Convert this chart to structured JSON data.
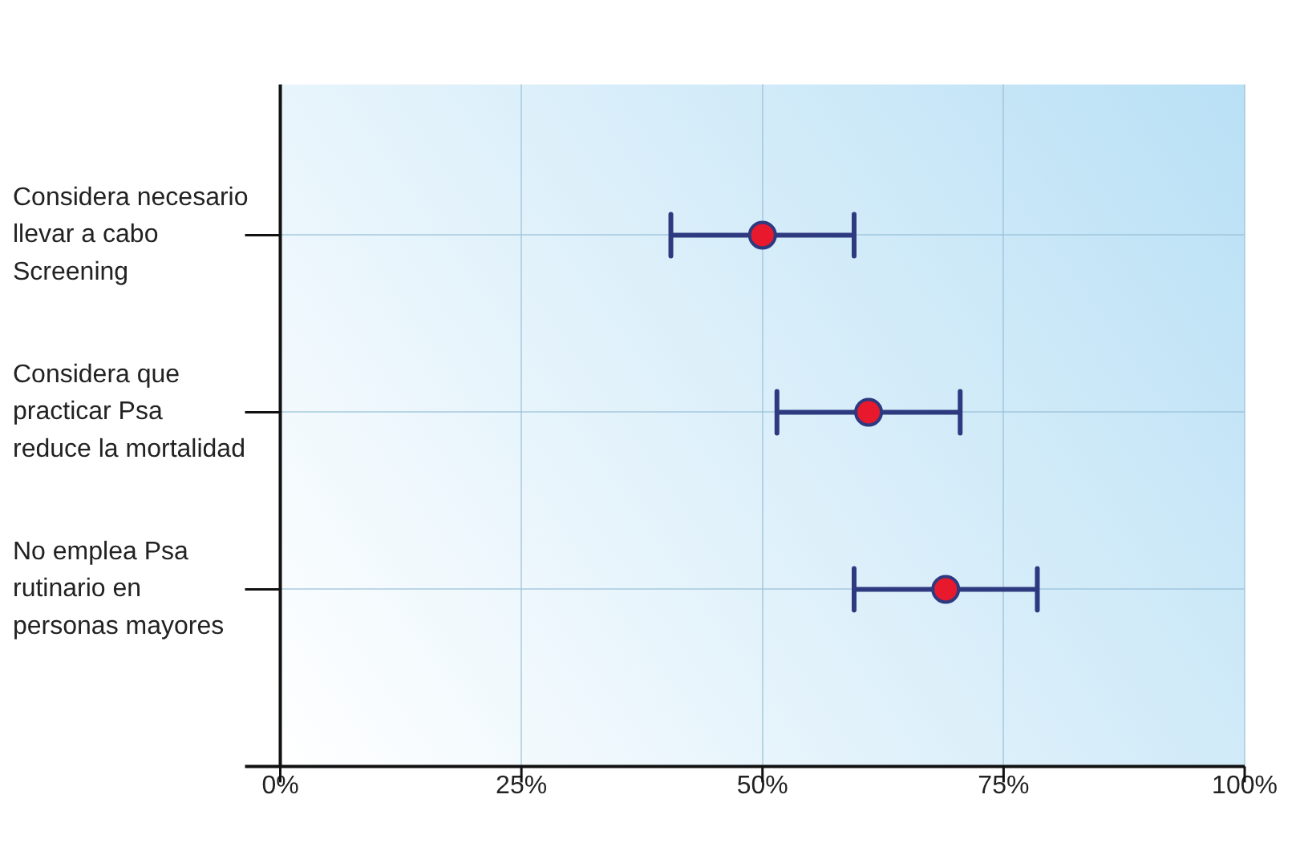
{
  "chart_data": {
    "type": "scatter",
    "orientation": "horizontal",
    "categories": [
      "Considera necesario\nllevar a cabo\nScreening",
      "Considera que\npracticar Psa\nreduce la mortalidad",
      "No emplea Psa\nrutinario en\npersonas mayores"
    ],
    "values": [
      50,
      61,
      69
    ],
    "errors": [
      9.5,
      9.5,
      9.5
    ],
    "color": "#e8192c",
    "xlim": [
      0,
      100
    ],
    "xticks": [
      {
        "value": 0,
        "label": "0%"
      },
      {
        "value": 25,
        "label": "25%"
      },
      {
        "value": 50,
        "label": "50%"
      },
      {
        "value": 75,
        "label": "75%"
      },
      {
        "value": 100,
        "label": "100%"
      }
    ],
    "grid": true,
    "legend": false,
    "marker": "circle"
  }
}
